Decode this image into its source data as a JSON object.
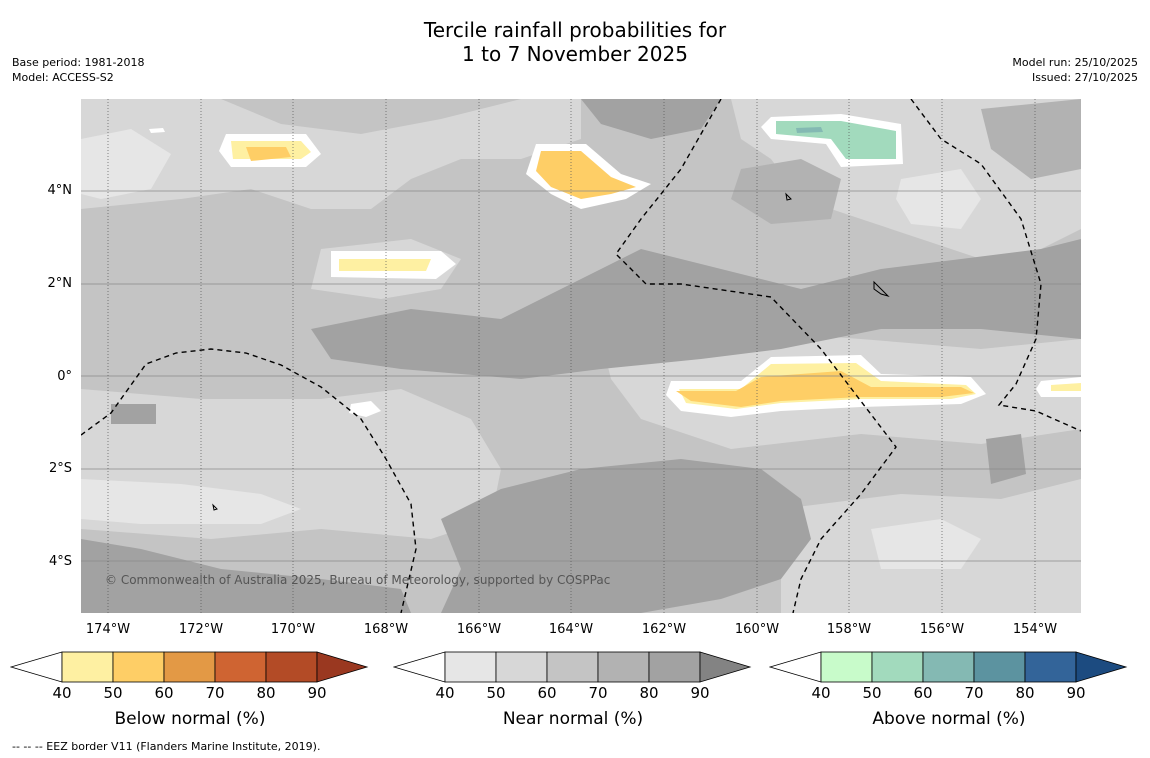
{
  "title": {
    "line1": "Tercile rainfall probabilities for",
    "line2": "1 to 7 November 2025"
  },
  "meta_left": {
    "base_period": "Base period: 1981-2018",
    "model": "Model: ACCESS-S2"
  },
  "meta_right": {
    "model_run": "Model run: 25/10/2025",
    "issued": "Issued: 27/10/2025"
  },
  "copyright": "© Commonwealth of Australia 2025, Bureau of Meteorology, supported by COSPPac",
  "footer": "--  --  -- EEZ border V11 (Flanders Marine Institute, 2019).",
  "lat_labels": [
    "4°N",
    "2°N",
    "0°",
    "2°S",
    "4°S"
  ],
  "lon_labels": [
    "174°W",
    "172°W",
    "170°W",
    "168°W",
    "166°W",
    "164°W",
    "162°W",
    "160°W",
    "158°W",
    "156°W",
    "154°W"
  ],
  "colorbars": [
    {
      "title": "Below normal (%)",
      "ticks": [
        "40",
        "50",
        "60",
        "70",
        "80",
        "90"
      ],
      "colors": [
        "#fef0a2",
        "#fece66",
        "#e39945",
        "#cf6432",
        "#b34b26",
        "#9a3820"
      ]
    },
    {
      "title": "Near normal (%)",
      "ticks": [
        "40",
        "50",
        "60",
        "70",
        "80",
        "90"
      ],
      "colors": [
        "#e6e6e6",
        "#d7d7d7",
        "#c4c4c4",
        "#b2b2b2",
        "#a2a2a2",
        "#838383"
      ]
    },
    {
      "title": "Above normal (%)",
      "ticks": [
        "40",
        "50",
        "60",
        "70",
        "80",
        "90"
      ],
      "colors": [
        "#c8fbca",
        "#a2dabd",
        "#84b9b3",
        "#5c93a0",
        "#336499",
        "#1c4b80"
      ]
    }
  ]
}
